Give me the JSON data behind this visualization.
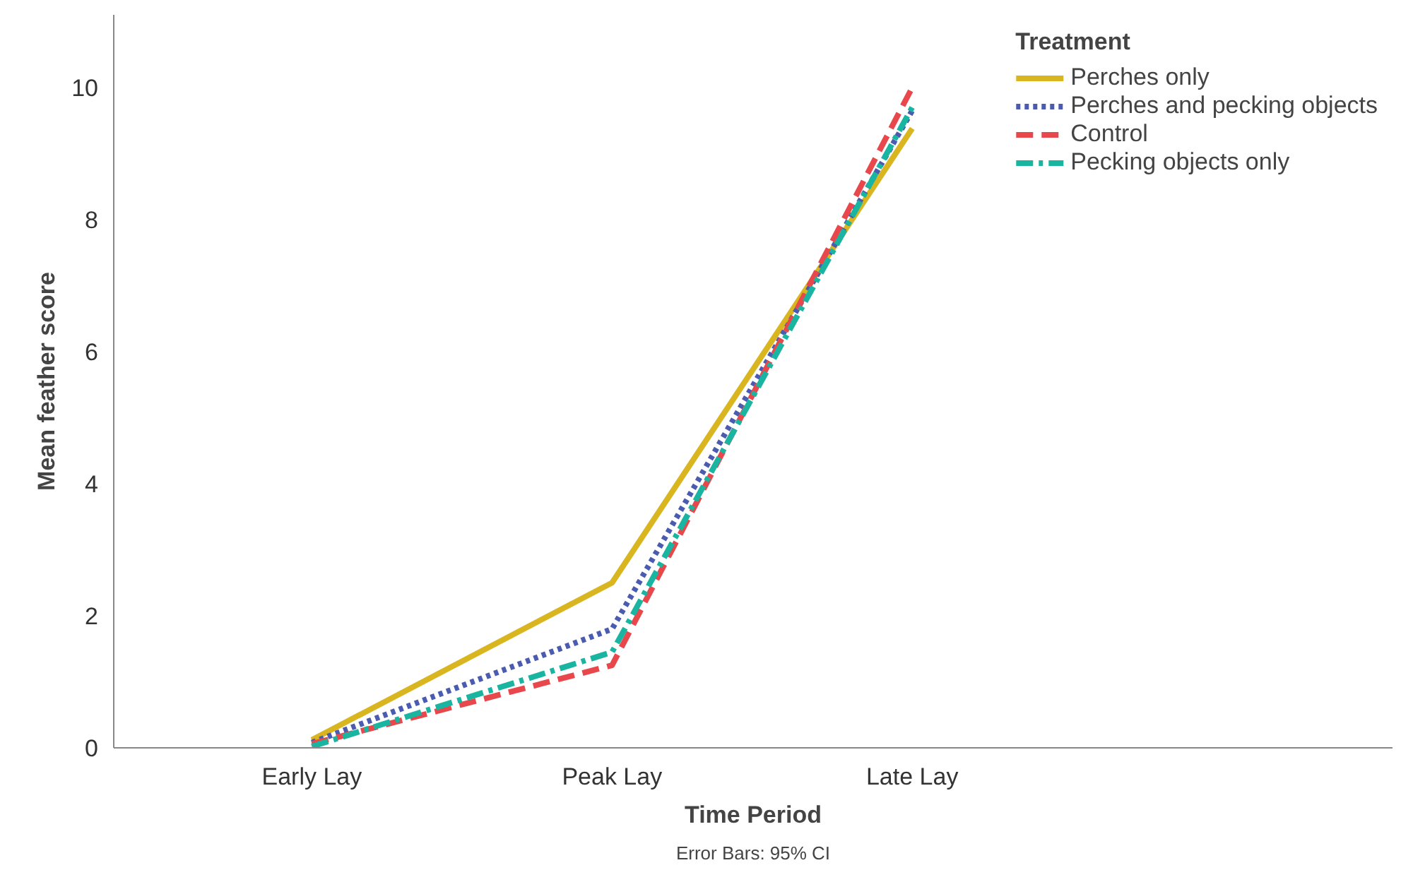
{
  "chart_data": {
    "type": "line",
    "xlabel": "Time Period",
    "ylabel": "Mean feather score",
    "legend_title": "Treatment",
    "categories": [
      "Early Lay",
      "Peak Lay",
      "Late Lay"
    ],
    "series": [
      {
        "name": "Perches only",
        "color": "#d9b51f",
        "line_style": "solid",
        "values": [
          0.12,
          2.5,
          9.38
        ]
      },
      {
        "name": "Perches and pecking objects",
        "color": "#4a5bb0",
        "line_style": "dotted",
        "values": [
          0.08,
          1.8,
          9.65
        ]
      },
      {
        "name": "Control",
        "color": "#e8474c",
        "line_style": "dashed",
        "values": [
          0.06,
          1.25,
          10.0
        ]
      },
      {
        "name": "Pecking objects only",
        "color": "#1ab5a0",
        "line_style": "dashdot",
        "values": [
          0.02,
          1.45,
          9.7
        ]
      }
    ],
    "ylim": [
      0,
      11.1
    ],
    "yticks": [
      0,
      2,
      4,
      6,
      8,
      10
    ],
    "grid": false,
    "legend": "right",
    "marker": "none",
    "annotations": [
      "Error Bars: 95% CI"
    ]
  }
}
